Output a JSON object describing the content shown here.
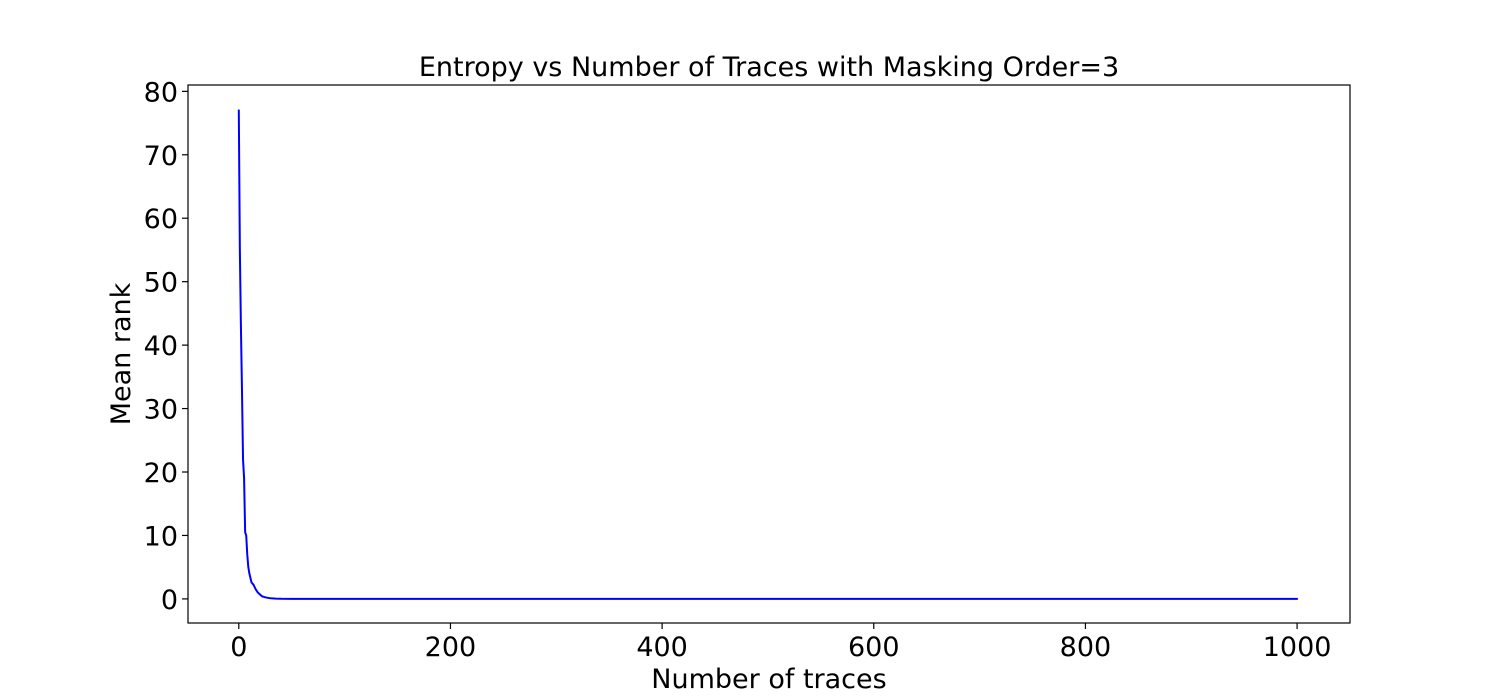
{
  "colors": {
    "series": "#0000ff",
    "background": "#ffffff",
    "axes": "#000000"
  },
  "chart_data": {
    "type": "line",
    "title": "Entropy vs Number of Traces with Masking Order=3",
    "xlabel": "Number of traces",
    "ylabel": "Mean rank",
    "xlim": [
      -48,
      1050
    ],
    "ylim": [
      -3.8,
      81
    ],
    "xticks": [
      0,
      200,
      400,
      600,
      800,
      1000
    ],
    "yticks": [
      0,
      10,
      20,
      30,
      40,
      50,
      60,
      70,
      80
    ],
    "grid": false,
    "legend": "none",
    "series": [
      {
        "x": [
          0,
          1,
          2,
          3,
          4,
          5,
          6,
          7,
          8,
          9,
          10,
          12,
          14,
          16,
          18,
          20,
          22,
          25,
          28,
          30,
          35,
          40,
          50,
          100,
          200,
          400,
          600,
          800,
          1000
        ],
        "values": [
          77,
          55,
          43,
          33,
          22,
          19,
          10.5,
          10,
          7,
          5,
          4,
          2.6,
          2.2,
          1.5,
          1.0,
          0.7,
          0.4,
          0.25,
          0.15,
          0.1,
          0.05,
          0.02,
          0,
          0,
          0,
          0,
          0,
          0,
          0
        ]
      }
    ]
  }
}
